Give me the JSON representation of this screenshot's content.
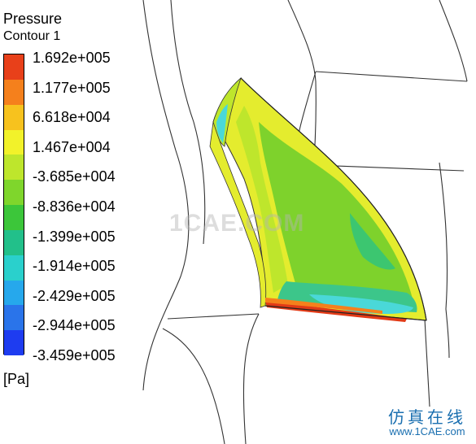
{
  "legend": {
    "title": "Pressure",
    "subtitle": "Contour 1",
    "units": "[Pa]",
    "ticks": [
      "1.692e+005",
      "1.177e+005",
      "6.618e+004",
      "1.467e+004",
      "-3.685e+004",
      "-8.836e+004",
      "-1.399e+005",
      "-1.914e+005",
      "-2.429e+005",
      "-2.944e+005",
      "-3.459e+005"
    ],
    "colors": [
      "#e8401a",
      "#f5801c",
      "#f7c21e",
      "#f2f22a",
      "#bee62c",
      "#7fd62c",
      "#3cc63a",
      "#22c08a",
      "#2ad0cc",
      "#26a8ec",
      "#2a74ea",
      "#1e3cf0"
    ]
  },
  "watermark": "1CAE.COM",
  "logo": {
    "name": "仿真在线",
    "url": "www.1CAE.com"
  },
  "colors": {
    "mesh_line": "#333333",
    "blade_yellow": "#e4ec2e",
    "blade_green": "#7ed22c",
    "blade_cyan": "#4ad8c8",
    "hot_red": "#e23a16"
  }
}
